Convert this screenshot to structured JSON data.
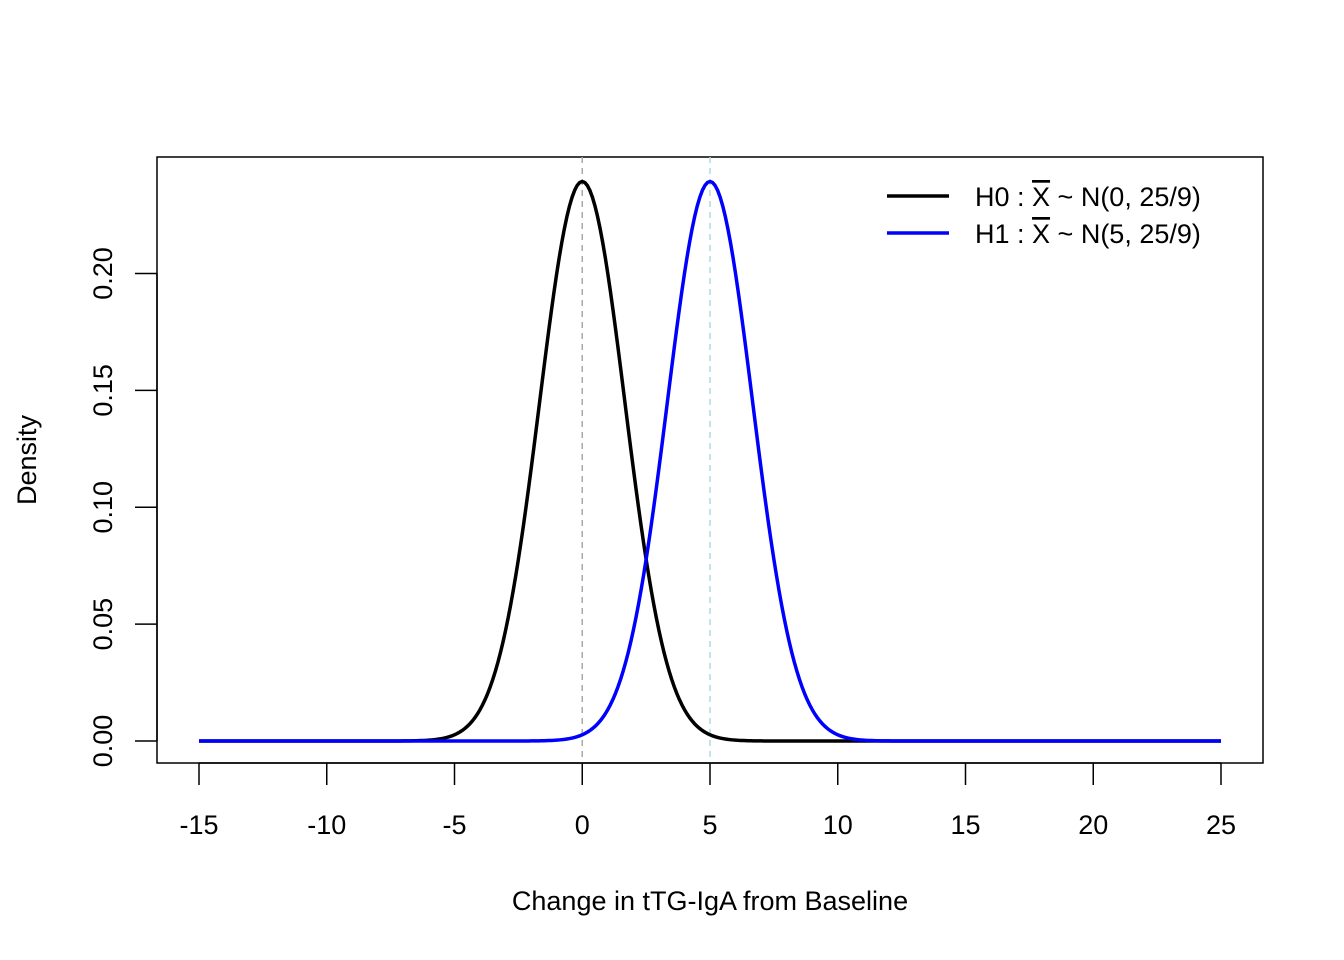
{
  "chart_data": {
    "type": "line",
    "xlabel": "Change in tTG-IgA from Baseline",
    "ylabel": "Density",
    "xlim": [
      -15,
      25
    ],
    "ylim": [
      0,
      0.24
    ],
    "x_ticks": [
      -15,
      -10,
      -5,
      0,
      5,
      10,
      15,
      20,
      25
    ],
    "x_tick_labels": [
      "-15",
      "-10",
      "-5",
      "0",
      "5",
      "10",
      "15",
      "20",
      "25"
    ],
    "y_ticks": [
      0,
      0.05,
      0.1,
      0.15,
      0.2
    ],
    "y_tick_labels": [
      "0.00",
      "0.05",
      "0.10",
      "0.15",
      "0.20"
    ],
    "grid": false,
    "legend_position": "top-right",
    "series": [
      {
        "legend_main": "H0 : ",
        "legend_tail": " ~ N(0, 25/9)",
        "legend_xbar": "X",
        "color": "#000000",
        "mean": 0,
        "variance": 2.7778,
        "x": [
          -15,
          -10,
          -6,
          -5,
          -4,
          -3,
          -2,
          -1,
          0,
          1,
          2,
          3,
          4,
          5,
          6,
          10,
          15,
          20,
          25
        ],
        "y": [
          0.0,
          0.0,
          0.0003,
          0.0027,
          0.0133,
          0.047,
          0.1164,
          0.2006,
          0.2394,
          0.2006,
          0.1164,
          0.047,
          0.0133,
          0.0027,
          0.0003,
          0.0,
          0.0,
          0.0,
          0.0
        ]
      },
      {
        "legend_main": "H1 : ",
        "legend_tail": " ~ N(5, 25/9)",
        "legend_xbar": "X",
        "color": "#0000ff",
        "mean": 5,
        "variance": 2.7778,
        "x": [
          -15,
          -10,
          -5,
          -1,
          0,
          1,
          2,
          3,
          4,
          5,
          6,
          7,
          8,
          9,
          10,
          11,
          15,
          20,
          25
        ],
        "y": [
          0.0,
          0.0,
          0.0,
          0.0003,
          0.0027,
          0.0133,
          0.047,
          0.1164,
          0.2006,
          0.2394,
          0.2006,
          0.1164,
          0.047,
          0.0133,
          0.0027,
          0.0003,
          0.0,
          0.0,
          0.0
        ]
      }
    ],
    "reference_lines": [
      {
        "x": 0,
        "color": "#a9a9a9",
        "style": "dashed"
      },
      {
        "x": 5,
        "color": "#add8e6",
        "style": "dashed"
      }
    ]
  }
}
